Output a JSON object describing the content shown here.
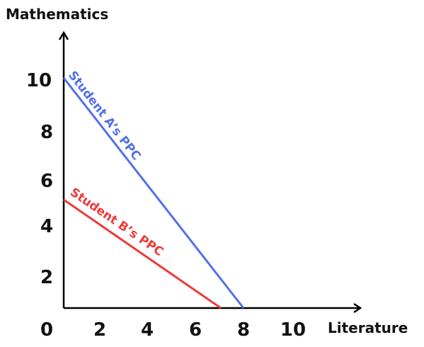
{
  "chart_data": {
    "type": "line",
    "title": "",
    "xlabel": "Literature",
    "ylabel": "Mathematics",
    "xlim": [
      0,
      11.5
    ],
    "ylim": [
      0,
      12
    ],
    "x_ticks": [
      {
        "value": 0,
        "label": "0"
      },
      {
        "value": 2,
        "label": "2"
      },
      {
        "value": 4,
        "label": "4"
      },
      {
        "value": 6,
        "label": "6"
      },
      {
        "value": 8,
        "label": "8"
      },
      {
        "value": 10,
        "label": "10"
      }
    ],
    "y_ticks": [
      {
        "value": 2,
        "label": "2"
      },
      {
        "value": 4,
        "label": "4"
      },
      {
        "value": 6,
        "label": "6"
      },
      {
        "value": 8,
        "label": "8"
      },
      {
        "value": 10,
        "label": "10"
      }
    ],
    "grid": false,
    "legend": "none",
    "series": [
      {
        "name": "Student A’s PPC",
        "color": "#5470e8",
        "points": [
          [
            0,
            10
          ],
          [
            8,
            0
          ]
        ]
      },
      {
        "name": "Student B’s PPC",
        "color": "#ee3a3a",
        "points": [
          [
            0,
            5
          ],
          [
            7,
            0
          ]
        ]
      }
    ]
  }
}
